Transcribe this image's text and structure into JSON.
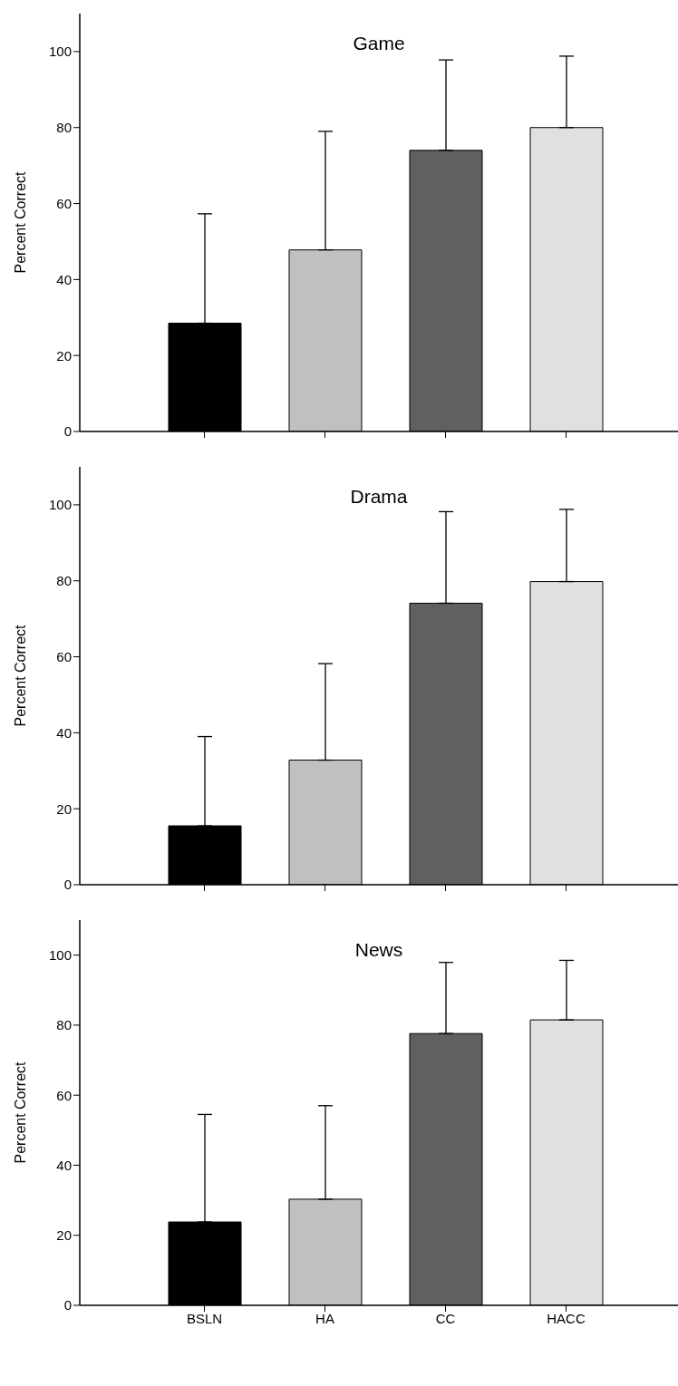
{
  "chart_data": [
    {
      "type": "bar",
      "title": "Game",
      "ylabel": "Percent Correct",
      "categories": [
        null,
        null,
        null,
        null
      ],
      "values": [
        28.5,
        47.8,
        74,
        80
      ],
      "errors": [
        [
          28.5,
          57.3
        ],
        [
          47.8,
          79
        ],
        [
          74,
          97.8
        ],
        [
          80,
          98.8
        ]
      ],
      "colors": [
        "#000000",
        "#c0c0c0",
        "#606060",
        "#e0e0e0"
      ],
      "ylim": [
        0,
        110
      ],
      "yticks": [
        0,
        20,
        40,
        60,
        80,
        100
      ],
      "grid": false,
      "legend": false
    },
    {
      "type": "bar",
      "title": "Drama",
      "ylabel": "Percent Correct",
      "categories": [
        null,
        null,
        null,
        null
      ],
      "values": [
        15.5,
        32.8,
        74.1,
        79.8
      ],
      "errors": [
        [
          15.5,
          39
        ],
        [
          32.8,
          58.2
        ],
        [
          74.1,
          98.2
        ],
        [
          79.8,
          98.8
        ]
      ],
      "colors": [
        "#000000",
        "#c0c0c0",
        "#606060",
        "#e0e0e0"
      ],
      "ylim": [
        0,
        110
      ],
      "yticks": [
        0,
        20,
        40,
        60,
        80,
        100
      ],
      "grid": false,
      "legend": false
    },
    {
      "type": "bar",
      "title": "News",
      "ylabel": "Percent Correct",
      "categories": [
        "BSLN",
        "HA",
        "CC",
        "HACC"
      ],
      "values": [
        23.8,
        30.3,
        77.6,
        81.5
      ],
      "errors": [
        [
          23.8,
          54.5
        ],
        [
          30.3,
          57
        ],
        [
          77.6,
          97.9
        ],
        [
          81.5,
          98.5
        ]
      ],
      "colors": [
        "#000000",
        "#c0c0c0",
        "#606060",
        "#e0e0e0"
      ],
      "ylim": [
        0,
        110
      ],
      "yticks": [
        0,
        20,
        40,
        60,
        80,
        100
      ],
      "grid": false,
      "legend": false
    }
  ]
}
